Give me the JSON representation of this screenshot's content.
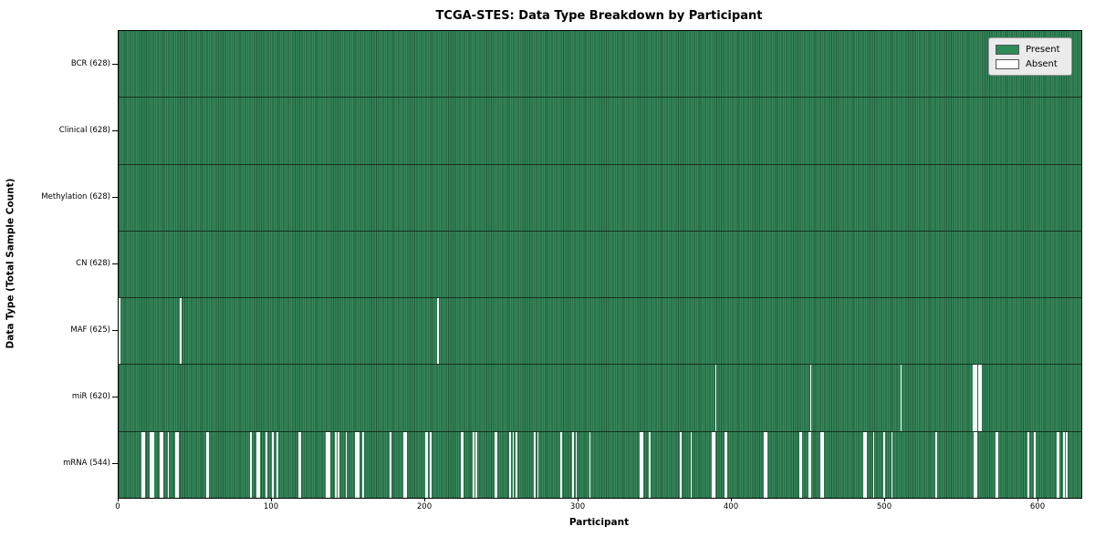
{
  "chart_data": {
    "type": "heatmap",
    "title": "TCGA-STES: Data Type Breakdown by Participant",
    "xlabel": "Participant",
    "ylabel": "Data Type (Total Sample Count)",
    "x_ticks": [
      0,
      100,
      200,
      300,
      400,
      500,
      600
    ],
    "xlim": [
      0,
      628
    ],
    "n_participants": 628,
    "grid": false,
    "legend_position": "upper right",
    "colors": {
      "present": "#2e8b57",
      "absent": "#ffffff",
      "bar_edge": "#1d5a38",
      "legend_bg": "#ebebeb"
    },
    "legend": [
      {
        "label": "Present",
        "color": "#2e8b57"
      },
      {
        "label": "Absent",
        "color": "#ffffff"
      }
    ],
    "rows": [
      {
        "data_type": "BCR",
        "label": "BCR (628)",
        "present_count": 628,
        "absent_count": 0,
        "absent_participants": []
      },
      {
        "data_type": "Clinical",
        "label": "Clinical (628)",
        "present_count": 628,
        "absent_count": 0,
        "absent_participants": []
      },
      {
        "data_type": "Methylation",
        "label": "Methylation (628)",
        "present_count": 628,
        "absent_count": 0,
        "absent_participants": []
      },
      {
        "data_type": "CN",
        "label": "CN (628)",
        "present_count": 628,
        "absent_count": 0,
        "absent_participants": []
      },
      {
        "data_type": "MAF",
        "label": "MAF (625)",
        "present_count": 625,
        "absent_count": 3,
        "absent_participants": [
          0,
          40,
          208
        ]
      },
      {
        "data_type": "miR",
        "label": "miR (620)",
        "present_count": 620,
        "absent_count": 8,
        "absent_participants": [
          389,
          451,
          510,
          557,
          558,
          559,
          561,
          562
        ]
      },
      {
        "data_type": "mRNA",
        "label": "mRNA (544)",
        "present_count": 544,
        "absent_count": 84,
        "absent_participants": [
          15,
          16,
          20,
          21,
          22,
          27,
          28,
          32,
          37,
          38,
          57,
          58,
          86,
          90,
          91,
          96,
          100,
          103,
          117,
          118,
          135,
          136,
          137,
          141,
          143,
          148,
          154,
          155,
          156,
          159,
          177,
          186,
          187,
          200,
          201,
          203,
          223,
          224,
          231,
          233,
          245,
          246,
          255,
          257,
          259,
          271,
          273,
          288,
          296,
          298,
          307,
          340,
          341,
          346,
          366,
          373,
          387,
          388,
          395,
          396,
          421,
          422,
          444,
          445,
          450,
          451,
          458,
          459,
          486,
          487,
          492,
          499,
          504,
          533,
          558,
          559,
          572,
          573,
          593,
          597,
          612,
          613,
          616,
          618
        ]
      }
    ]
  }
}
